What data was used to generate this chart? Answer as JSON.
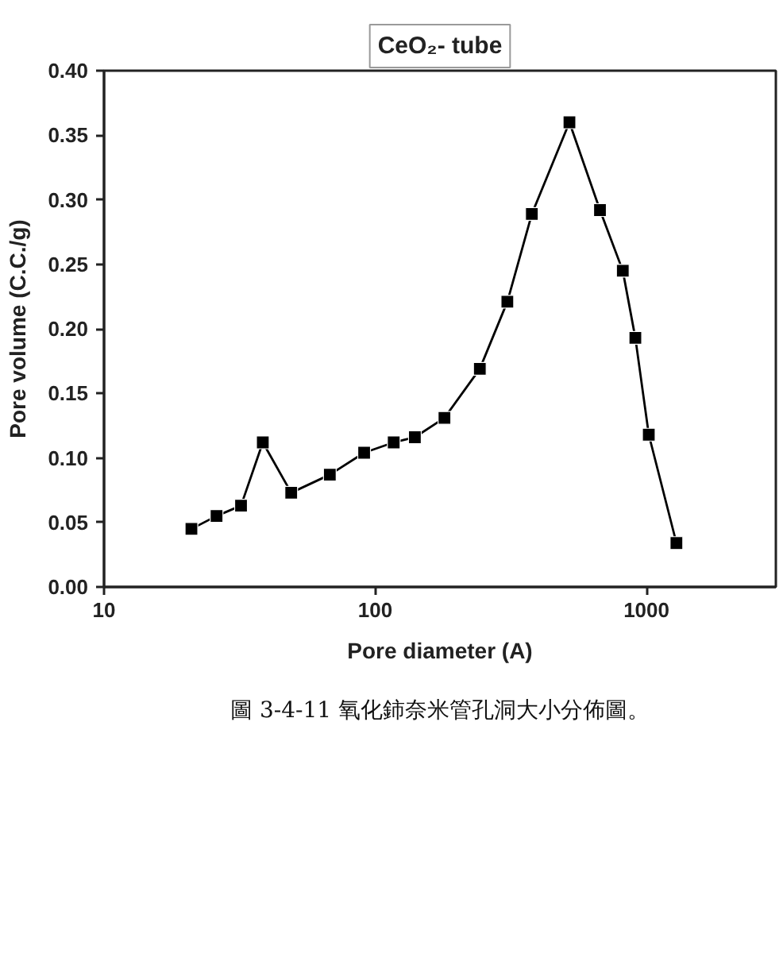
{
  "chart_data": {
    "type": "line",
    "title": "CeO₂- tube",
    "xlabel": "Pore diameter (A)",
    "ylabel": "Pore volume (C.C./g)",
    "annotations": [
      "圖 3-4-11 氧化鈰奈米管孔洞大小分佈圖。"
    ],
    "x": [
      21,
      26,
      32,
      38.5,
      49,
      68,
      91,
      117,
      140,
      180,
      243,
      307,
      378,
      520,
      674,
      818,
      910,
      1020,
      1290
    ],
    "values": [
      0.045,
      0.055,
      0.063,
      0.112,
      0.073,
      0.087,
      0.104,
      0.112,
      0.116,
      0.131,
      0.169,
      0.221,
      0.289,
      0.36,
      0.292,
      0.245,
      0.193,
      0.118,
      0.034
    ],
    "color": "#000000",
    "marker": "square",
    "line_style": "solid",
    "log": "x",
    "xlim": [
      10,
      3000
    ],
    "ylim": [
      0,
      0.4
    ],
    "xticks": [
      10,
      100,
      1000
    ],
    "yticks": [
      {
        "value": 0,
        "label": "0.00"
      },
      0.05,
      {
        "value": 0.1,
        "label": "0.10"
      },
      0.15,
      {
        "value": 0.2,
        "label": "0.20"
      },
      0.25,
      {
        "value": 0.3,
        "label": "0.30"
      },
      0.35,
      {
        "value": 0.4,
        "label": "0.40"
      }
    ]
  }
}
